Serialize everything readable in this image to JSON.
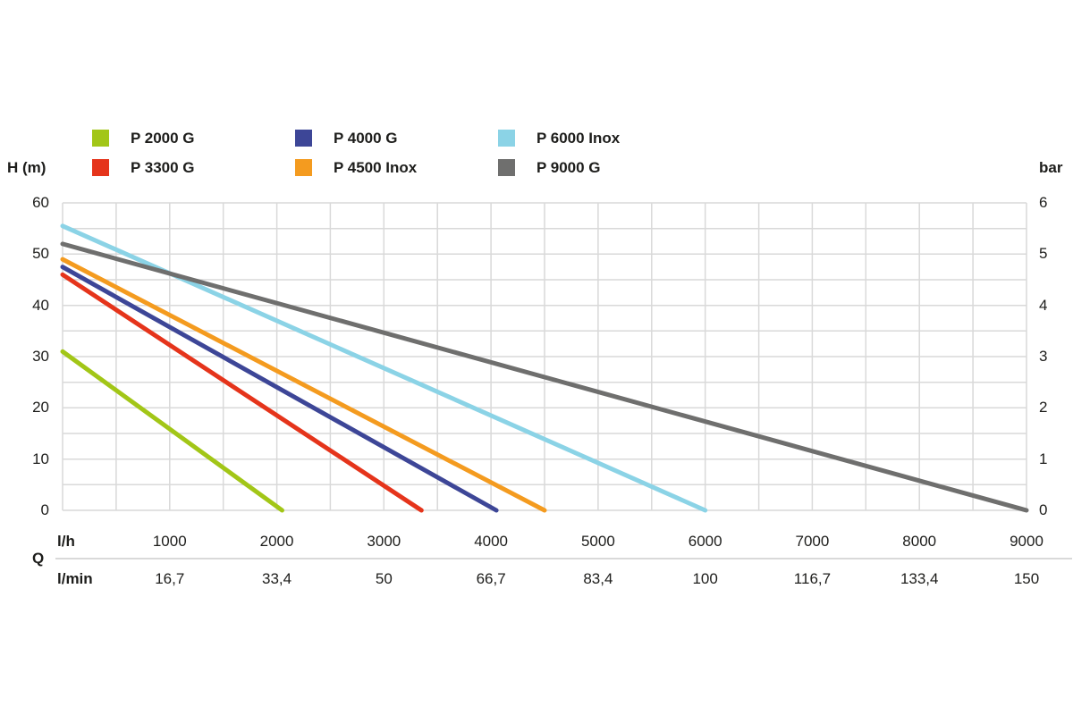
{
  "chart_data": {
    "type": "line",
    "title": "",
    "grid": "on",
    "grid_color": "#d9d9d9",
    "text_color": "#1d1d1b",
    "y_left": {
      "label": "H (m)",
      "min": 0,
      "max": 60,
      "ticks": [
        0,
        10,
        20,
        30,
        40,
        50,
        60
      ],
      "grid_step": 5
    },
    "y_right": {
      "label": "bar",
      "min": 0,
      "max": 6,
      "ticks": [
        0,
        1,
        2,
        3,
        4,
        5,
        6
      ]
    },
    "x_axis": {
      "label": "Q",
      "min": 0,
      "max": 9000,
      "grid_step": 500,
      "ticks": [
        1000,
        2000,
        3000,
        4000,
        5000,
        6000,
        7000,
        8000,
        9000
      ],
      "unit_rows": [
        {
          "unit": "l/h",
          "labels": [
            "1000",
            "2000",
            "3000",
            "4000",
            "5000",
            "6000",
            "7000",
            "8000",
            "9000"
          ]
        },
        {
          "unit": "l/min",
          "labels": [
            "16,7",
            "33,4",
            "50",
            "66,7",
            "83,4",
            "100",
            "116,7",
            "133,4",
            "150"
          ]
        }
      ]
    },
    "series": [
      {
        "name": "P 2000 G",
        "color": "#a2c617",
        "points": [
          [
            0,
            31
          ],
          [
            2050,
            0
          ]
        ]
      },
      {
        "name": "P 3300 G",
        "color": "#e5341b",
        "points": [
          [
            0,
            46
          ],
          [
            3350,
            0
          ]
        ]
      },
      {
        "name": "P 4000 G",
        "color": "#3d4697",
        "points": [
          [
            0,
            47.5
          ],
          [
            4050,
            0
          ]
        ]
      },
      {
        "name": "P 4500 Inox",
        "color": "#f49b1f",
        "points": [
          [
            0,
            49
          ],
          [
            4500,
            0
          ]
        ]
      },
      {
        "name": "P 6000 Inox",
        "color": "#8bd3e6",
        "points": [
          [
            0,
            55.5
          ],
          [
            6000,
            0
          ]
        ]
      },
      {
        "name": "P 9000 G",
        "color": "#6f6f6e",
        "points": [
          [
            0,
            52
          ],
          [
            9000,
            0
          ]
        ]
      }
    ],
    "legend": {
      "position": "top",
      "columns": 3,
      "fill": "column-major"
    }
  }
}
